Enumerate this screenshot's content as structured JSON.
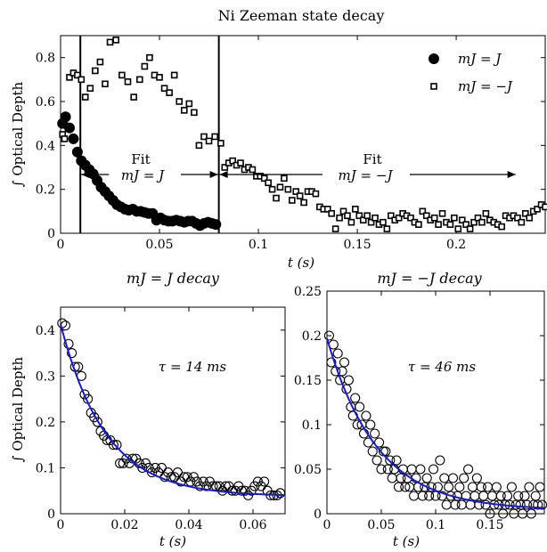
{
  "chart_data": [
    {
      "type": "scatter",
      "title": "Ni Zeeman state decay",
      "xlabel": "t (s)",
      "ylabel": "∫ Optical Depth",
      "xlim": [
        0,
        0.245
      ],
      "ylim": [
        0,
        0.9
      ],
      "xticks": [
        0,
        0.05,
        0.1,
        0.15,
        0.2
      ],
      "xtick_labels": [
        "0",
        "0.05",
        "0.1",
        "0.15",
        "0.2"
      ],
      "yticks": [
        0,
        0.2,
        0.4,
        0.6,
        0.8
      ],
      "ytick_labels": [
        "0",
        "0.2",
        "0.4",
        "0.6",
        "0.8"
      ],
      "grid": false,
      "legend": "top-right",
      "vlines": [
        0.01,
        0.08
      ],
      "annotations": [
        {
          "label": "Fit",
          "math": "mJ = J",
          "x_from": 0.01,
          "x_to": 0.08,
          "y": 0.27
        },
        {
          "label": "Fit",
          "math": "mJ = −J",
          "x_from": 0.08,
          "x_to": 0.23,
          "y": 0.27
        }
      ],
      "series": [
        {
          "name": "mJ = J",
          "marker": "filled-circle",
          "x": [
            0.001,
            0.0025,
            0.0045,
            0.0065,
            0.0085,
            0.0105,
            0.0125,
            0.0145,
            0.0165,
            0.0185,
            0.0205,
            0.0225,
            0.0245,
            0.0265,
            0.0285,
            0.0305,
            0.0325,
            0.0345,
            0.0365,
            0.0385,
            0.0405,
            0.0425,
            0.0445,
            0.0465,
            0.0485,
            0.0505,
            0.0525,
            0.0545,
            0.0565,
            0.0585,
            0.0605,
            0.0625,
            0.0645,
            0.0665,
            0.0685,
            0.0705,
            0.0725,
            0.0745,
            0.0765,
            0.0785
          ],
          "y": [
            0.5,
            0.53,
            0.48,
            0.43,
            0.37,
            0.33,
            0.31,
            0.29,
            0.27,
            0.24,
            0.21,
            0.19,
            0.17,
            0.15,
            0.13,
            0.12,
            0.11,
            0.105,
            0.11,
            0.1,
            0.1,
            0.095,
            0.09,
            0.09,
            0.06,
            0.07,
            0.06,
            0.055,
            0.055,
            0.06,
            0.055,
            0.05,
            0.055,
            0.055,
            0.045,
            0.035,
            0.045,
            0.05,
            0.045,
            0.04
          ]
        },
        {
          "name": "mJ = −J",
          "marker": "open-square",
          "x": [
            0.001,
            0.002,
            0.0045,
            0.0065,
            0.0085,
            0.0105,
            0.0125,
            0.015,
            0.0175,
            0.02,
            0.0225,
            0.025,
            0.028,
            0.031,
            0.034,
            0.037,
            0.04,
            0.0425,
            0.045,
            0.0475,
            0.05,
            0.0525,
            0.055,
            0.0575,
            0.06,
            0.0625,
            0.065,
            0.0675,
            0.07,
            0.0725,
            0.075,
            0.078,
            0.081,
            0.083,
            0.085,
            0.087,
            0.089,
            0.091,
            0.093,
            0.095,
            0.097,
            0.099,
            0.101,
            0.103,
            0.105,
            0.107,
            0.109,
            0.111,
            0.113,
            0.115,
            0.117,
            0.119,
            0.121,
            0.123,
            0.125,
            0.127,
            0.129,
            0.131,
            0.133,
            0.135,
            0.137,
            0.139,
            0.141,
            0.143,
            0.145,
            0.147,
            0.149,
            0.151,
            0.153,
            0.155,
            0.157,
            0.159,
            0.161,
            0.163,
            0.165,
            0.167,
            0.169,
            0.171,
            0.173,
            0.175,
            0.177,
            0.179,
            0.181,
            0.183,
            0.185,
            0.187,
            0.189,
            0.191,
            0.193,
            0.195,
            0.197,
            0.199,
            0.201,
            0.203,
            0.205,
            0.207,
            0.209,
            0.211,
            0.213,
            0.215,
            0.217,
            0.219,
            0.221,
            0.223,
            0.225,
            0.227,
            0.229,
            0.231,
            0.233,
            0.235,
            0.237,
            0.239,
            0.241,
            0.243,
            0.245
          ],
          "y": [
            0.45,
            0.43,
            0.71,
            0.73,
            0.72,
            0.7,
            0.62,
            0.66,
            0.74,
            0.78,
            0.68,
            0.87,
            0.88,
            0.72,
            0.69,
            0.62,
            0.7,
            0.76,
            0.8,
            0.72,
            0.71,
            0.66,
            0.64,
            0.72,
            0.6,
            0.56,
            0.59,
            0.55,
            0.4,
            0.44,
            0.42,
            0.44,
            0.41,
            0.3,
            0.32,
            0.33,
            0.31,
            0.32,
            0.29,
            0.3,
            0.29,
            0.26,
            0.26,
            0.25,
            0.23,
            0.2,
            0.16,
            0.21,
            0.25,
            0.2,
            0.15,
            0.19,
            0.17,
            0.14,
            0.19,
            0.19,
            0.18,
            0.12,
            0.11,
            0.11,
            0.09,
            0.02,
            0.07,
            0.1,
            0.08,
            0.05,
            0.11,
            0.08,
            0.06,
            0.08,
            0.05,
            0.07,
            0.04,
            0.05,
            0.02,
            0.08,
            0.06,
            0.07,
            0.09,
            0.08,
            0.07,
            0.05,
            0.04,
            0.1,
            0.08,
            0.06,
            0.07,
            0.04,
            0.09,
            0.05,
            0.04,
            0.07,
            0.02,
            0.06,
            0.04,
            0.02,
            0.05,
            0.07,
            0.05,
            0.09,
            0.06,
            0.05,
            0.04,
            0.03,
            0.08,
            0.07,
            0.08,
            0.07,
            0.05,
            0.09,
            0.07,
            0.1,
            0.11,
            0.13,
            0.12
          ]
        }
      ]
    },
    {
      "type": "scatter",
      "title": "mJ = J decay",
      "annotation": "τ = 14 ms",
      "xlabel": "t (s)",
      "ylabel": "∫ Optical Depth",
      "xlim": [
        0,
        0.07
      ],
      "ylim": [
        0,
        0.45
      ],
      "xticks": [
        0,
        0.02,
        0.04,
        0.06
      ],
      "xtick_labels": [
        "0",
        "0.02",
        "0.04",
        "0.06"
      ],
      "yticks": [
        0,
        0.1,
        0.2,
        0.3,
        0.4
      ],
      "ytick_labels": [
        "0",
        "0.1",
        "0.2",
        "0.3",
        "0.4"
      ],
      "grid": false,
      "fit": {
        "model": "exponential",
        "amplitude": 0.375,
        "tau": 0.014,
        "offset": 0.038,
        "color": "#1a1acd"
      },
      "series": [
        {
          "name": "data",
          "marker": "open-circle",
          "x": [
            0.0005,
            0.0015,
            0.0025,
            0.0035,
            0.0045,
            0.0055,
            0.0065,
            0.0075,
            0.0085,
            0.0095,
            0.0105,
            0.0115,
            0.0125,
            0.0135,
            0.0145,
            0.0155,
            0.0165,
            0.0175,
            0.0185,
            0.0195,
            0.0205,
            0.0215,
            0.0225,
            0.0235,
            0.0245,
            0.0255,
            0.0265,
            0.0275,
            0.0285,
            0.0295,
            0.0305,
            0.0315,
            0.0325,
            0.0335,
            0.0345,
            0.0355,
            0.0365,
            0.0375,
            0.0385,
            0.0395,
            0.0405,
            0.0415,
            0.0425,
            0.0435,
            0.0445,
            0.0455,
            0.0465,
            0.0475,
            0.0485,
            0.0495,
            0.0505,
            0.0515,
            0.0525,
            0.0535,
            0.0545,
            0.0555,
            0.0565,
            0.0575,
            0.0585,
            0.0595,
            0.0605,
            0.0615,
            0.0625,
            0.0635,
            0.0645,
            0.0655,
            0.0665,
            0.0675,
            0.0685
          ],
          "y": [
            0.415,
            0.41,
            0.37,
            0.35,
            0.32,
            0.32,
            0.3,
            0.26,
            0.25,
            0.22,
            0.21,
            0.2,
            0.18,
            0.17,
            0.16,
            0.16,
            0.15,
            0.15,
            0.11,
            0.11,
            0.12,
            0.11,
            0.12,
            0.12,
            0.11,
            0.1,
            0.11,
            0.1,
            0.09,
            0.1,
            0.09,
            0.1,
            0.08,
            0.09,
            0.08,
            0.08,
            0.09,
            0.07,
            0.08,
            0.08,
            0.07,
            0.08,
            0.07,
            0.06,
            0.07,
            0.06,
            0.07,
            0.06,
            0.06,
            0.06,
            0.05,
            0.06,
            0.06,
            0.05,
            0.05,
            0.06,
            0.05,
            0.05,
            0.04,
            0.05,
            0.06,
            0.07,
            0.06,
            0.07,
            0.05,
            0.04,
            0.04,
            0.04,
            0.045
          ]
        }
      ]
    },
    {
      "type": "scatter",
      "title": "mJ = −J decay",
      "annotation": "τ = 46 ms",
      "xlabel": "t (s)",
      "ylabel": "",
      "xlim": [
        0,
        0.2
      ],
      "ylim": [
        0,
        0.25
      ],
      "xticks": [
        0,
        0.05,
        0.1,
        0.15
      ],
      "xtick_labels": [
        "0",
        "0.05",
        "0.1",
        "0.15"
      ],
      "yticks": [
        0,
        0.05,
        0.1,
        0.15,
        0.2,
        0.25
      ],
      "ytick_labels": [
        "0",
        "0.05",
        "0.1",
        "0.15",
        "0.2",
        "0.25"
      ],
      "grid": false,
      "fit": {
        "model": "exponential",
        "amplitude": 0.193,
        "tau": 0.046,
        "offset": 0.004,
        "color": "#1a1acd"
      },
      "series": [
        {
          "name": "data",
          "marker": "open-circle",
          "x": [
            0.002,
            0.004,
            0.006,
            0.008,
            0.01,
            0.012,
            0.014,
            0.016,
            0.018,
            0.02,
            0.022,
            0.024,
            0.026,
            0.028,
            0.03,
            0.032,
            0.034,
            0.036,
            0.038,
            0.04,
            0.042,
            0.044,
            0.046,
            0.048,
            0.05,
            0.052,
            0.054,
            0.056,
            0.058,
            0.06,
            0.062,
            0.064,
            0.066,
            0.068,
            0.07,
            0.072,
            0.074,
            0.076,
            0.078,
            0.08,
            0.082,
            0.084,
            0.086,
            0.088,
            0.09,
            0.092,
            0.094,
            0.096,
            0.098,
            0.1,
            0.102,
            0.104,
            0.106,
            0.108,
            0.11,
            0.112,
            0.114,
            0.116,
            0.118,
            0.12,
            0.122,
            0.124,
            0.126,
            0.128,
            0.13,
            0.132,
            0.134,
            0.136,
            0.138,
            0.14,
            0.142,
            0.144,
            0.146,
            0.148,
            0.15,
            0.152,
            0.154,
            0.156,
            0.158,
            0.16,
            0.162,
            0.164,
            0.166,
            0.168,
            0.17,
            0.172,
            0.174,
            0.176,
            0.178,
            0.18,
            0.182,
            0.184,
            0.186,
            0.188,
            0.19,
            0.192,
            0.194,
            0.196,
            0.198
          ],
          "y": [
            0.2,
            0.17,
            0.19,
            0.16,
            0.18,
            0.15,
            0.16,
            0.17,
            0.14,
            0.15,
            0.12,
            0.11,
            0.13,
            0.1,
            0.12,
            0.1,
            0.09,
            0.11,
            0.08,
            0.1,
            0.07,
            0.09,
            0.06,
            0.08,
            0.05,
            0.07,
            0.07,
            0.05,
            0.06,
            0.04,
            0.05,
            0.06,
            0.03,
            0.04,
            0.05,
            0.03,
            0.04,
            0.03,
            0.05,
            0.02,
            0.04,
            0.03,
            0.05,
            0.02,
            0.03,
            0.04,
            0.02,
            0.03,
            0.05,
            0.02,
            0.03,
            0.06,
            0.02,
            0.04,
            0.01,
            0.03,
            0.02,
            0.04,
            0.01,
            0.02,
            0.03,
            0.01,
            0.04,
            0.02,
            0.05,
            0.01,
            0.03,
            0.02,
            0.04,
            0.01,
            0.03,
            0.02,
            0.01,
            0.03,
            0.0,
            0.02,
            0.01,
            0.03,
            0.01,
            0.02,
            0.0,
            0.01,
            0.02,
            0.01,
            0.03,
            0.0,
            0.01,
            0.02,
            0.01,
            0.0,
            0.02,
            0.01,
            0.03,
            0.0,
            0.01,
            0.02,
            0.01,
            0.03,
            0.01
          ]
        }
      ]
    }
  ]
}
